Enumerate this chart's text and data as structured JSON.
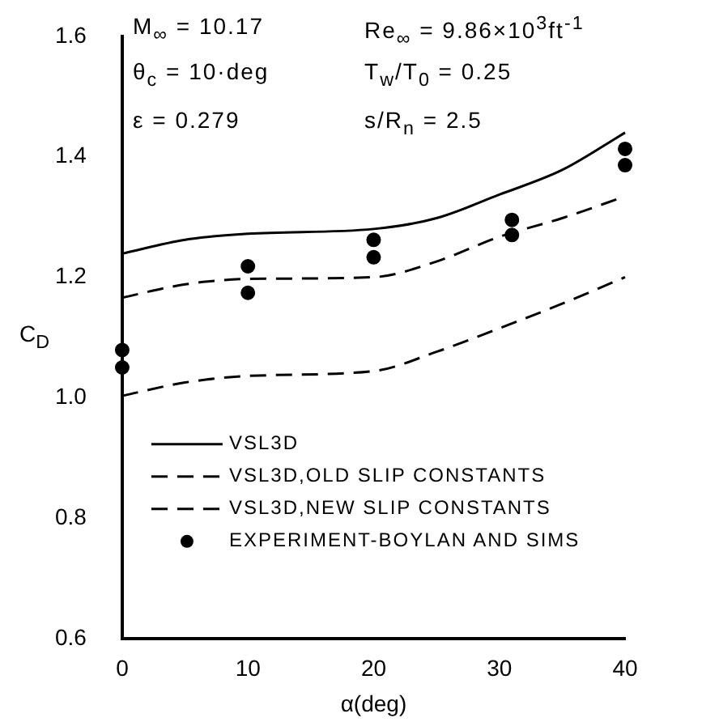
{
  "chart_data": {
    "type": "line",
    "xlabel": "α(deg)",
    "ylabel": "C$_{D}$",
    "annotations": [
      "M$_{∞}$ = 10.17",
      "Re$_{∞}$ = 9.86×10$^{3}$ft$^{-1}$",
      "θ$_{c}$ = 10·deg",
      "T$_{w}$/T$_{0}$ = 0.25",
      "ε = 0.279",
      "s/R$_{n}$ = 2.5"
    ],
    "xlim": [
      0,
      40
    ],
    "xticks": [
      0,
      10,
      20,
      30,
      40
    ],
    "ylim": [
      0.6,
      1.6
    ],
    "yticks": [
      {
        "value": 0.6,
        "label": "0.6"
      },
      {
        "value": 0.8,
        "label": "0.8"
      },
      {
        "value": 1,
        "label": "1.0"
      },
      {
        "value": 1.2,
        "label": "1.2"
      },
      {
        "value": 1.4,
        "label": "1.4"
      },
      {
        "value": 1.6,
        "label": "1.6"
      }
    ],
    "grid": false,
    "legend": "bottom left",
    "series": [
      {
        "name": "VSL3D",
        "color": "#000000",
        "line_style": "solid",
        "marker": "none",
        "x": [
          0,
          5,
          10,
          20,
          25,
          30,
          35,
          40
        ],
        "values": [
          1.239,
          1.262,
          1.272,
          1.28,
          1.298,
          1.337,
          1.378,
          1.44
        ]
      },
      {
        "name": "VSL3D,OLD SLIP CONSTANTS",
        "color": "#000000",
        "line_style": "dashed",
        "marker": "none",
        "x": [
          0,
          5,
          10,
          20,
          25,
          30,
          35,
          40
        ],
        "values": [
          1.003,
          1.025,
          1.036,
          1.044,
          1.076,
          1.115,
          1.156,
          1.2
        ]
      },
      {
        "name": "VSL3D,NEW SLIP CONSTANTS",
        "color": "#000000",
        "line_style": "dashed",
        "marker": "none",
        "x": [
          0,
          5,
          10,
          20,
          25,
          30,
          35,
          40
        ],
        "values": [
          1.166,
          1.188,
          1.197,
          1.2,
          1.226,
          1.267,
          1.298,
          1.334
        ]
      },
      {
        "name": "EXPERIMENT-BOYLAN AND SIMS",
        "type": "scatter",
        "color": "#000000",
        "marker": "circle",
        "x": [
          0,
          0,
          10,
          10,
          20,
          20,
          31,
          31,
          40,
          40
        ],
        "values": [
          1.079,
          1.05,
          1.218,
          1.174,
          1.262,
          1.233,
          1.295,
          1.27,
          1.413,
          1.386
        ]
      }
    ]
  }
}
